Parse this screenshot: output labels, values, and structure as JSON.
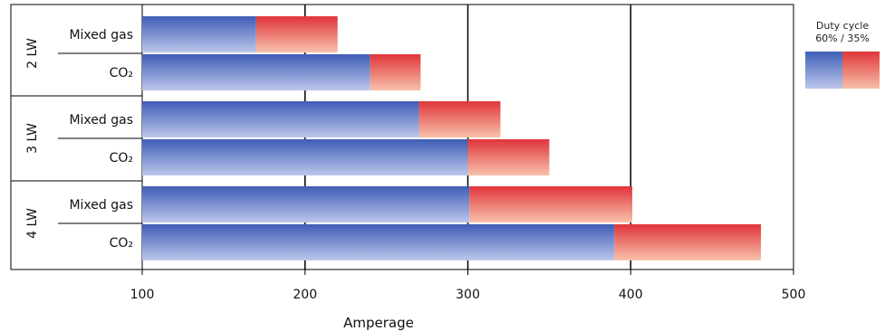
{
  "chart_data": {
    "type": "bar",
    "orientation": "horizontal",
    "stacked": true,
    "xlabel": "Amperage",
    "xlim": [
      100,
      500
    ],
    "xticks": [
      100,
      200,
      300,
      400,
      500
    ],
    "grid": true,
    "legend": {
      "title_line1": "Duty cycle",
      "title_line2": "60% / 35%",
      "placement": "right"
    },
    "groups": [
      {
        "label": "2 LW",
        "rows": [
          {
            "label": "Mixed gas",
            "duty_60": 170,
            "duty_35": 220
          },
          {
            "label": "CO₂",
            "duty_60": 240,
            "duty_35": 271
          }
        ]
      },
      {
        "label": "3 LW",
        "rows": [
          {
            "label": "Mixed gas",
            "duty_60": 270,
            "duty_35": 320
          },
          {
            "label": "CO₂",
            "duty_60": 300,
            "duty_35": 350
          }
        ]
      },
      {
        "label": "4 LW",
        "rows": [
          {
            "label": "Mixed gas",
            "duty_60": 301,
            "duty_35": 401
          },
          {
            "label": "CO₂",
            "duty_60": 390,
            "duty_35": 480
          }
        ]
      }
    ],
    "colors": {
      "duty_60": "#4060b8",
      "duty_35": "#e0363b"
    }
  }
}
